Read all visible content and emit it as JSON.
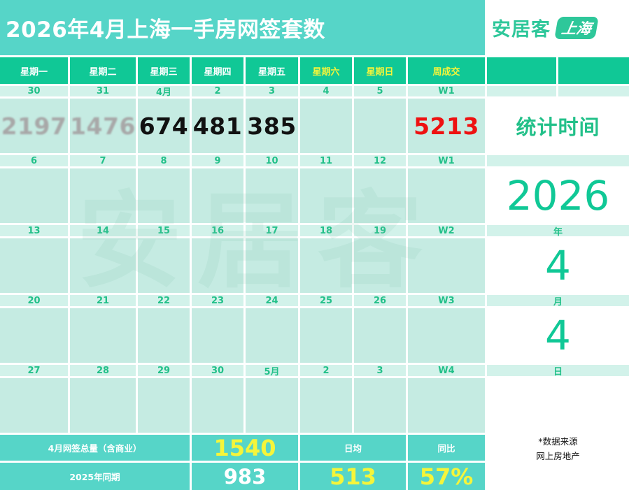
{
  "header": {
    "title": "2026年4月上海一手房网签套数",
    "logo_main": "安居客",
    "logo_badge": "上海"
  },
  "weekday_headers": [
    "星期一",
    "星期二",
    "星期三",
    "星期四",
    "星期五",
    "星期六",
    "星期日",
    "周成交"
  ],
  "weeks": [
    {
      "dates": [
        "30",
        "31",
        "4月",
        "2",
        "3",
        "4",
        "5",
        "W1"
      ],
      "values": [
        "2197",
        "1476",
        "674",
        "481",
        "385",
        "",
        "",
        "5213"
      ]
    },
    {
      "dates": [
        "6",
        "7",
        "8",
        "9",
        "10",
        "11",
        "12",
        "W1"
      ],
      "values": [
        "",
        "",
        "",
        "",
        "",
        "",
        "",
        ""
      ]
    },
    {
      "dates": [
        "13",
        "14",
        "15",
        "16",
        "17",
        "18",
        "19",
        "W2"
      ],
      "values": [
        "",
        "",
        "",
        "",
        "",
        "",
        "",
        ""
      ]
    },
    {
      "dates": [
        "20",
        "21",
        "22",
        "23",
        "24",
        "25",
        "26",
        "W3"
      ],
      "values": [
        "",
        "",
        "",
        "",
        "",
        "",
        "",
        ""
      ]
    },
    {
      "dates": [
        "27",
        "28",
        "29",
        "30",
        "5月",
        "2",
        "3",
        "W4"
      ],
      "values": [
        "",
        "",
        "",
        "",
        "",
        "",
        "",
        ""
      ]
    }
  ],
  "side": {
    "label": "统计时间",
    "year": "2026",
    "year_unit": "年",
    "month": "4",
    "month_unit": "月",
    "day": "4",
    "day_unit": "日",
    "source_line1": "*数据来源",
    "source_line2": "网上房地产"
  },
  "footer": {
    "total_label": "4月网签总量（含商业）",
    "total_value": "1540",
    "avg_label": "日均",
    "yoy_label": "同比",
    "last_year_label": "2025年同期",
    "last_year_value": "983",
    "avg_value": "513",
    "yoy_value": "57%"
  },
  "watermark": "安居客",
  "colors": {
    "title_bg": "#56d5c8",
    "header_bg": "#10c896",
    "date_bg": "#d2f2ea",
    "box_bg": "#c5ebe2",
    "accent_green": "#22c089",
    "highlight_yellow": "#f5f53a",
    "week_total_red": "#ee1111"
  }
}
